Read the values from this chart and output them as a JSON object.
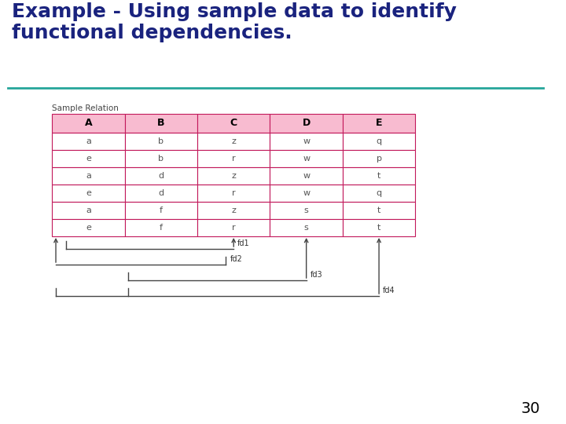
{
  "title_line1": "Example - Using sample data to identify",
  "title_line2": "functional dependencies.",
  "title_color": "#1a237e",
  "title_fontsize": 18,
  "separator_color": "#26a69a",
  "background_color": "#ffffff",
  "table_label": "Sample Relation",
  "table_label_fontsize": 7.5,
  "headers": [
    "A",
    "B",
    "C",
    "D",
    "E"
  ],
  "rows": [
    [
      "a",
      "b",
      "z",
      "w",
      "q"
    ],
    [
      "e",
      "b",
      "r",
      "w",
      "p"
    ],
    [
      "a",
      "d",
      "z",
      "w",
      "t"
    ],
    [
      "e",
      "d",
      "r",
      "w",
      "q"
    ],
    [
      "a",
      "f",
      "z",
      "s",
      "t"
    ],
    [
      "e",
      "f",
      "r",
      "s",
      "t"
    ]
  ],
  "header_fill": "#f8bbd0",
  "row_fill": "#ffffff",
  "table_border_color": "#c2185b",
  "table_text_color": "#555555",
  "header_text_color": "#000000",
  "cell_fontsize": 8,
  "header_fontsize": 9,
  "fd_labels": [
    "fd1",
    "fd2",
    "fd3",
    "fd4"
  ],
  "fd_fontsize": 7,
  "arrow_color": "#444444",
  "page_number": "30",
  "page_number_fontsize": 14
}
